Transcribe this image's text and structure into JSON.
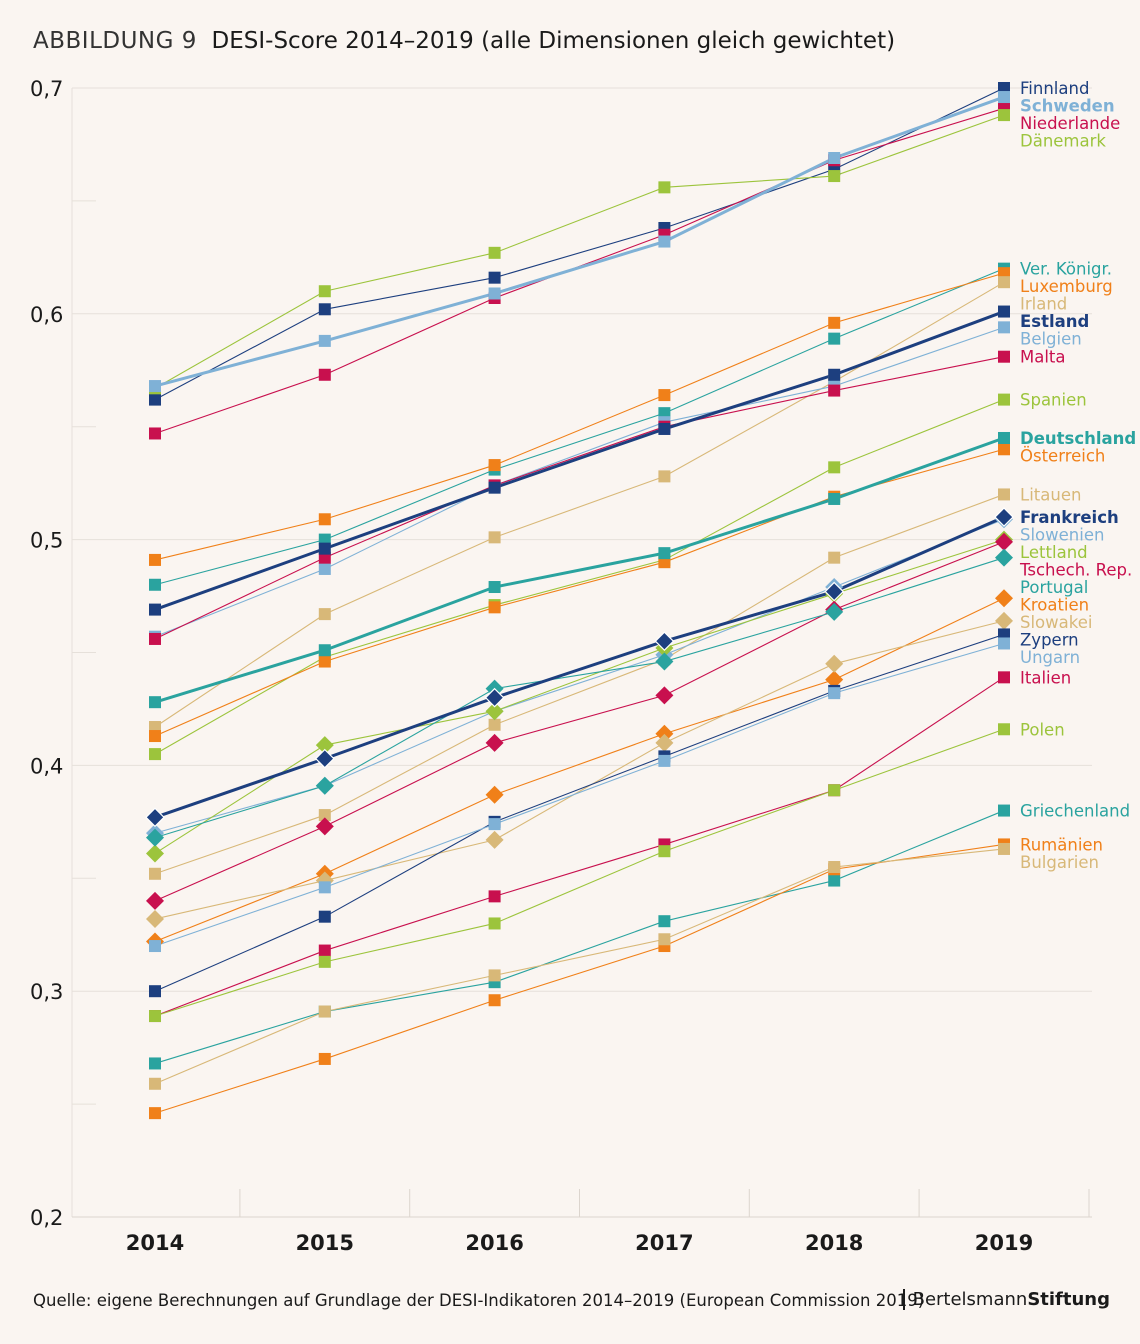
{
  "header": {
    "figure_label": "ABBILDUNG 9",
    "title": "DESI-Score 2014–2019 (alle Dimensionen gleich gewichtet)"
  },
  "footer": {
    "source": "Quelle: eigene Berechnungen auf Grundlage der DESI-Indikatoren 2014–2019 (European Commission 2019)",
    "brand_part1": "Bertelsmann",
    "brand_part2": "Stiftung"
  },
  "chart_data": {
    "type": "line",
    "title": "DESI-Score 2014–2019 (alle Dimensionen gleich gewichtet)",
    "x": [
      "2014",
      "2015",
      "2016",
      "2017",
      "2018",
      "2019"
    ],
    "ylim": [
      0.2,
      0.7
    ],
    "yticks": [
      0.2,
      0.3,
      0.4,
      0.5,
      0.6,
      0.7
    ],
    "ytick_labels": [
      "0,2",
      "0,3",
      "0,4",
      "0,5",
      "0,6",
      "0,7"
    ],
    "grid": "horizontal",
    "legend": "right-end-labels",
    "series": [
      {
        "name": "Finnland",
        "color": "#1d3f7f",
        "marker": "square",
        "bold": false,
        "values": [
          0.562,
          0.602,
          0.616,
          0.638,
          0.664,
          0.7
        ]
      },
      {
        "name": "Schweden",
        "color": "#7fb1d6",
        "marker": "square",
        "bold": true,
        "values": [
          0.568,
          0.588,
          0.609,
          0.632,
          0.669,
          0.696
        ]
      },
      {
        "name": "Niederlande",
        "color": "#c8104e",
        "marker": "square",
        "bold": false,
        "values": [
          0.547,
          0.573,
          0.607,
          0.635,
          0.668,
          0.691
        ]
      },
      {
        "name": "Dänemark",
        "color": "#9cc43c",
        "marker": "square",
        "bold": false,
        "values": [
          0.567,
          0.61,
          0.627,
          0.656,
          0.661,
          0.688
        ]
      },
      {
        "name": "Ver. Königr.",
        "color": "#2aa39f",
        "marker": "square",
        "bold": false,
        "values": [
          0.48,
          0.5,
          0.531,
          0.556,
          0.589,
          0.62
        ]
      },
      {
        "name": "Luxemburg",
        "color": "#f08019",
        "marker": "square",
        "bold": false,
        "values": [
          0.491,
          0.509,
          0.533,
          0.564,
          0.596,
          0.618
        ]
      },
      {
        "name": "Irland",
        "color": "#d8b878",
        "marker": "square",
        "bold": false,
        "values": [
          0.417,
          0.467,
          0.501,
          0.528,
          0.57,
          0.614
        ]
      },
      {
        "name": "Estland",
        "color": "#1d3f7f",
        "marker": "square",
        "bold": true,
        "values": [
          0.469,
          0.496,
          0.523,
          0.549,
          0.573,
          0.601
        ]
      },
      {
        "name": "Belgien",
        "color": "#7fb1d6",
        "marker": "square",
        "bold": false,
        "values": [
          0.457,
          0.487,
          0.524,
          0.552,
          0.568,
          0.594
        ]
      },
      {
        "name": "Malta",
        "color": "#c8104e",
        "marker": "square",
        "bold": false,
        "values": [
          0.456,
          0.492,
          0.524,
          0.55,
          0.566,
          0.581
        ]
      },
      {
        "name": "Spanien",
        "color": "#9cc43c",
        "marker": "square",
        "bold": false,
        "values": [
          0.405,
          0.448,
          0.471,
          0.491,
          0.532,
          0.562
        ]
      },
      {
        "name": "Deutschland",
        "color": "#2aa39f",
        "marker": "square",
        "bold": true,
        "values": [
          0.428,
          0.451,
          0.479,
          0.494,
          0.518,
          0.545
        ]
      },
      {
        "name": "Österreich",
        "color": "#f08019",
        "marker": "square",
        "bold": false,
        "values": [
          0.413,
          0.446,
          0.47,
          0.49,
          0.519,
          0.54
        ]
      },
      {
        "name": "Litauen",
        "color": "#d8b878",
        "marker": "square",
        "bold": false,
        "values": [
          0.352,
          0.378,
          0.418,
          0.447,
          0.492,
          0.52
        ]
      },
      {
        "name": "Frankreich",
        "color": "#1d3f7f",
        "marker": "diamond",
        "bold": true,
        "values": [
          0.377,
          0.403,
          0.43,
          0.455,
          0.477,
          0.51
        ]
      },
      {
        "name": "Slowenien",
        "color": "#7fb1d6",
        "marker": "diamond",
        "bold": false,
        "values": [
          0.37,
          0.391,
          0.424,
          0.449,
          0.479,
          0.509
        ]
      },
      {
        "name": "Lettland",
        "color": "#9cc43c",
        "marker": "diamond",
        "bold": false,
        "values": [
          0.361,
          0.409,
          0.424,
          0.452,
          0.476,
          0.5
        ]
      },
      {
        "name": "Tschech. Rep.",
        "color": "#c8104e",
        "marker": "diamond",
        "bold": false,
        "values": [
          0.34,
          0.373,
          0.41,
          0.431,
          0.469,
          0.499
        ]
      },
      {
        "name": "Portugal",
        "color": "#2aa39f",
        "marker": "diamond",
        "bold": false,
        "values": [
          0.368,
          0.391,
          0.434,
          0.446,
          0.468,
          0.492
        ]
      },
      {
        "name": "Kroatien",
        "color": "#f08019",
        "marker": "diamond",
        "bold": false,
        "values": [
          0.322,
          0.352,
          0.387,
          0.414,
          0.438,
          0.474
        ]
      },
      {
        "name": "Slowakei",
        "color": "#d8b878",
        "marker": "diamond",
        "bold": false,
        "values": [
          0.332,
          0.349,
          0.367,
          0.41,
          0.445,
          0.464
        ]
      },
      {
        "name": "Zypern",
        "color": "#1d3f7f",
        "marker": "square",
        "bold": false,
        "values": [
          0.3,
          0.333,
          0.375,
          0.404,
          0.433,
          0.458
        ]
      },
      {
        "name": "Ungarn",
        "color": "#7fb1d6",
        "marker": "square",
        "bold": false,
        "values": [
          0.32,
          0.346,
          0.374,
          0.402,
          0.432,
          0.454
        ]
      },
      {
        "name": "Italien",
        "color": "#c8104e",
        "marker": "square",
        "bold": false,
        "values": [
          0.289,
          0.318,
          0.342,
          0.365,
          0.389,
          0.439
        ]
      },
      {
        "name": "Polen",
        "color": "#9cc43c",
        "marker": "square",
        "bold": false,
        "values": [
          0.289,
          0.313,
          0.33,
          0.362,
          0.389,
          0.416
        ]
      },
      {
        "name": "Griechenland",
        "color": "#2aa39f",
        "marker": "square",
        "bold": false,
        "values": [
          0.268,
          0.291,
          0.304,
          0.331,
          0.349,
          0.38
        ]
      },
      {
        "name": "Rumänien",
        "color": "#f08019",
        "marker": "square",
        "bold": false,
        "values": [
          0.246,
          0.27,
          0.296,
          0.32,
          0.354,
          0.365
        ]
      },
      {
        "name": "Bulgarien",
        "color": "#d8b878",
        "marker": "square",
        "bold": false,
        "values": [
          0.259,
          0.291,
          0.307,
          0.323,
          0.355,
          0.363
        ]
      }
    ]
  }
}
